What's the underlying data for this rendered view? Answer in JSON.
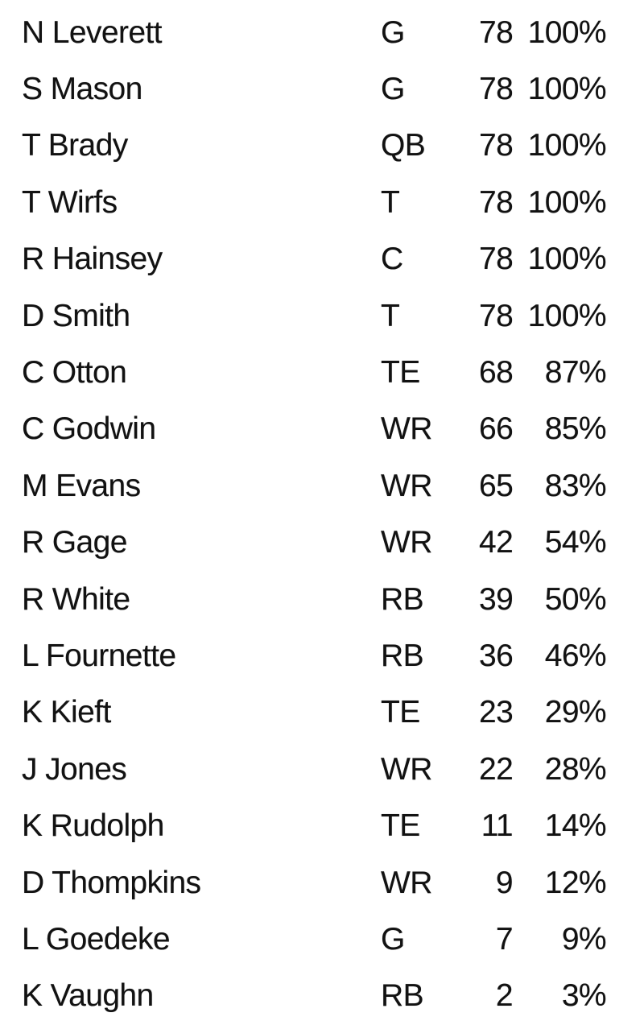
{
  "colors": {
    "background": "#ffffff",
    "text": "#121212"
  },
  "table": {
    "name": "offensive-snap-counts",
    "columns": [
      "name",
      "pos",
      "snaps",
      "pct"
    ],
    "rows": [
      {
        "name": "N Leverett",
        "pos": "G",
        "snaps": "78",
        "pct": "100%"
      },
      {
        "name": "S Mason",
        "pos": "G",
        "snaps": "78",
        "pct": "100%"
      },
      {
        "name": "T Brady",
        "pos": "QB",
        "snaps": "78",
        "pct": "100%"
      },
      {
        "name": "T Wirfs",
        "pos": "T",
        "snaps": "78",
        "pct": "100%"
      },
      {
        "name": "R Hainsey",
        "pos": "C",
        "snaps": "78",
        "pct": "100%"
      },
      {
        "name": "D Smith",
        "pos": "T",
        "snaps": "78",
        "pct": "100%"
      },
      {
        "name": "C Otton",
        "pos": "TE",
        "snaps": "68",
        "pct": "87%"
      },
      {
        "name": "C Godwin",
        "pos": "WR",
        "snaps": "66",
        "pct": "85%"
      },
      {
        "name": "M Evans",
        "pos": "WR",
        "snaps": "65",
        "pct": "83%"
      },
      {
        "name": "R Gage",
        "pos": "WR",
        "snaps": "42",
        "pct": "54%"
      },
      {
        "name": "R White",
        "pos": "RB",
        "snaps": "39",
        "pct": "50%"
      },
      {
        "name": "L Fournette",
        "pos": "RB",
        "snaps": "36",
        "pct": "46%"
      },
      {
        "name": "K Kieft",
        "pos": "TE",
        "snaps": "23",
        "pct": "29%"
      },
      {
        "name": "J Jones",
        "pos": "WR",
        "snaps": "22",
        "pct": "28%"
      },
      {
        "name": "K Rudolph",
        "pos": "TE",
        "snaps": "11",
        "pct": "14%"
      },
      {
        "name": "D Thompkins",
        "pos": "WR",
        "snaps": "9",
        "pct": "12%"
      },
      {
        "name": "L Goedeke",
        "pos": "G",
        "snaps": "7",
        "pct": "9%"
      },
      {
        "name": "K Vaughn",
        "pos": "RB",
        "snaps": "2",
        "pct": "3%"
      }
    ]
  }
}
